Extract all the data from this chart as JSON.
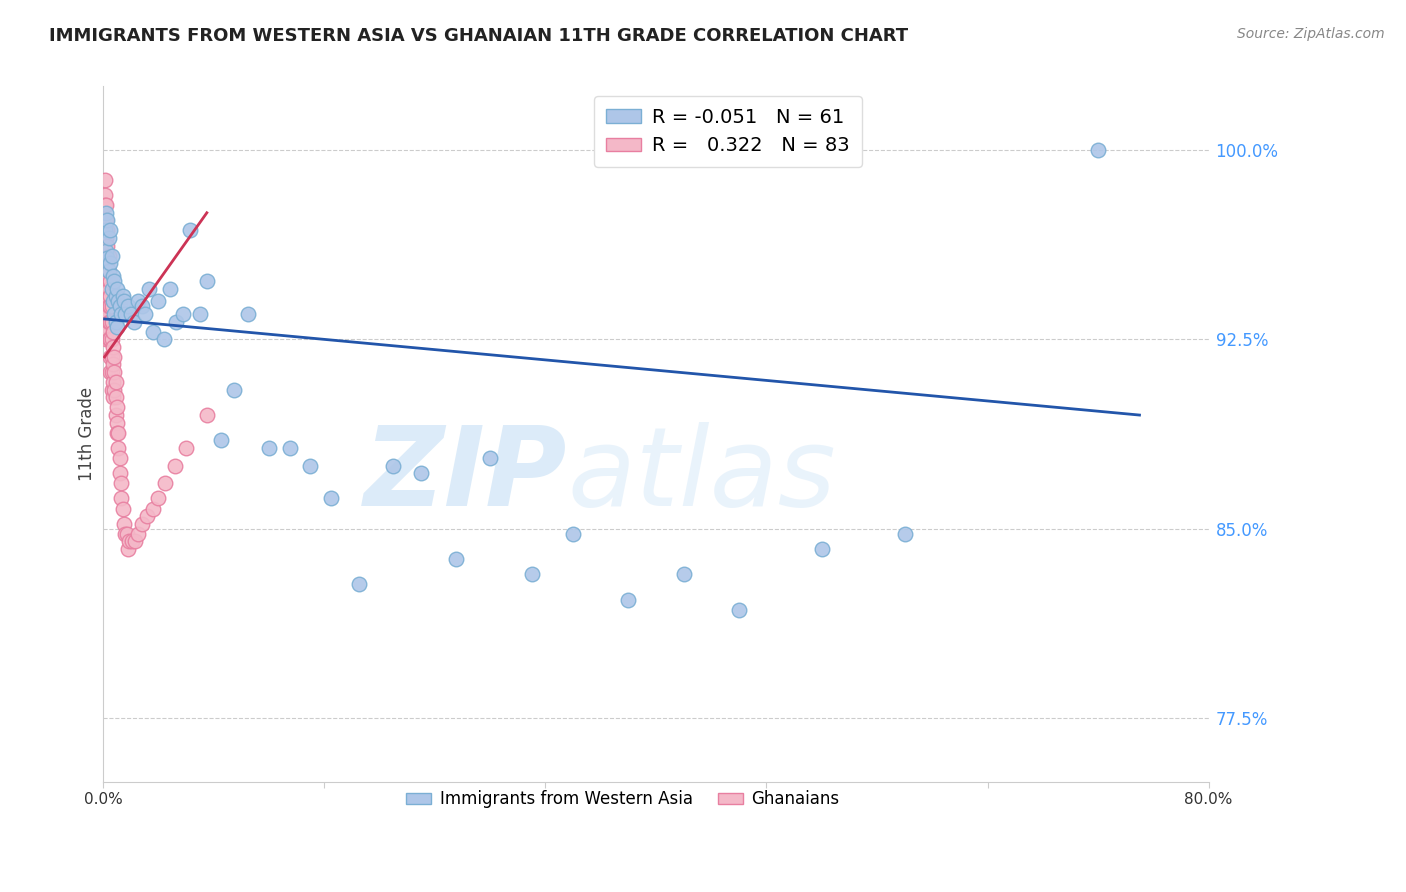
{
  "title": "IMMIGRANTS FROM WESTERN ASIA VS GHANAIAN 11TH GRADE CORRELATION CHART",
  "source": "Source: ZipAtlas.com",
  "ylabel": "11th Grade",
  "legend_label_blue": "Immigrants from Western Asia",
  "legend_label_pink": "Ghanaians",
  "R_blue": -0.051,
  "N_blue": 61,
  "R_pink": 0.322,
  "N_pink": 83,
  "xlim": [
    0.0,
    0.8
  ],
  "ylim": [
    0.75,
    1.025
  ],
  "yticks": [
    0.775,
    0.85,
    0.925,
    1.0
  ],
  "ytick_labels": [
    "77.5%",
    "85.0%",
    "92.5%",
    "100.0%"
  ],
  "xticks": [
    0.0,
    0.16,
    0.32,
    0.48,
    0.64,
    0.8
  ],
  "xtick_labels": [
    "0.0%",
    "",
    "",
    "",
    "",
    "80.0%"
  ],
  "color_blue": "#aec6e8",
  "color_pink": "#f4b8c8",
  "edge_blue": "#7bafd4",
  "edge_pink": "#e87fa0",
  "line_blue": "#2255aa",
  "line_pink": "#cc3355",
  "background": "#ffffff",
  "watermark_zip": "ZIP",
  "watermark_atlas": "atlas",
  "blue_x": [
    0.001,
    0.002,
    0.002,
    0.003,
    0.003,
    0.004,
    0.004,
    0.005,
    0.005,
    0.006,
    0.006,
    0.007,
    0.007,
    0.008,
    0.008,
    0.009,
    0.009,
    0.01,
    0.01,
    0.011,
    0.012,
    0.013,
    0.014,
    0.015,
    0.016,
    0.018,
    0.02,
    0.022,
    0.025,
    0.028,
    0.03,
    0.033,
    0.036,
    0.04,
    0.044,
    0.048,
    0.053,
    0.058,
    0.063,
    0.07,
    0.075,
    0.085,
    0.095,
    0.105,
    0.12,
    0.135,
    0.15,
    0.165,
    0.185,
    0.21,
    0.23,
    0.255,
    0.28,
    0.31,
    0.34,
    0.38,
    0.42,
    0.46,
    0.52,
    0.58,
    0.72
  ],
  "blue_y": [
    0.968,
    0.975,
    0.96,
    0.972,
    0.957,
    0.965,
    0.952,
    0.955,
    0.968,
    0.945,
    0.958,
    0.95,
    0.94,
    0.948,
    0.935,
    0.942,
    0.932,
    0.945,
    0.93,
    0.94,
    0.938,
    0.935,
    0.942,
    0.94,
    0.935,
    0.938,
    0.935,
    0.932,
    0.94,
    0.938,
    0.935,
    0.945,
    0.928,
    0.94,
    0.925,
    0.945,
    0.932,
    0.935,
    0.968,
    0.935,
    0.948,
    0.885,
    0.905,
    0.935,
    0.882,
    0.882,
    0.875,
    0.862,
    0.828,
    0.875,
    0.872,
    0.838,
    0.878,
    0.832,
    0.848,
    0.822,
    0.832,
    0.818,
    0.842,
    0.848,
    1.0
  ],
  "pink_x": [
    0.001,
    0.001,
    0.001,
    0.001,
    0.001,
    0.001,
    0.001,
    0.001,
    0.001,
    0.001,
    0.001,
    0.002,
    0.002,
    0.002,
    0.002,
    0.002,
    0.002,
    0.002,
    0.002,
    0.002,
    0.003,
    0.003,
    0.003,
    0.003,
    0.003,
    0.003,
    0.003,
    0.004,
    0.004,
    0.004,
    0.004,
    0.004,
    0.004,
    0.005,
    0.005,
    0.005,
    0.005,
    0.005,
    0.005,
    0.005,
    0.006,
    0.006,
    0.006,
    0.006,
    0.006,
    0.006,
    0.007,
    0.007,
    0.007,
    0.007,
    0.007,
    0.008,
    0.008,
    0.008,
    0.009,
    0.009,
    0.009,
    0.01,
    0.01,
    0.01,
    0.011,
    0.011,
    0.012,
    0.012,
    0.013,
    0.013,
    0.014,
    0.015,
    0.016,
    0.017,
    0.018,
    0.019,
    0.021,
    0.023,
    0.025,
    0.028,
    0.032,
    0.036,
    0.04,
    0.045,
    0.052,
    0.06,
    0.075
  ],
  "pink_y": [
    0.988,
    0.982,
    0.978,
    0.972,
    0.968,
    0.962,
    0.958,
    0.952,
    0.948,
    0.942,
    0.935,
    0.978,
    0.972,
    0.965,
    0.958,
    0.952,
    0.945,
    0.938,
    0.932,
    0.925,
    0.968,
    0.962,
    0.955,
    0.948,
    0.942,
    0.935,
    0.928,
    0.958,
    0.952,
    0.945,
    0.938,
    0.932,
    0.925,
    0.948,
    0.942,
    0.938,
    0.932,
    0.925,
    0.918,
    0.912,
    0.938,
    0.932,
    0.925,
    0.918,
    0.912,
    0.905,
    0.928,
    0.922,
    0.915,
    0.908,
    0.902,
    0.918,
    0.912,
    0.905,
    0.908,
    0.902,
    0.895,
    0.898,
    0.892,
    0.888,
    0.888,
    0.882,
    0.878,
    0.872,
    0.868,
    0.862,
    0.858,
    0.852,
    0.848,
    0.848,
    0.842,
    0.845,
    0.845,
    0.845,
    0.848,
    0.852,
    0.855,
    0.858,
    0.862,
    0.868,
    0.875,
    0.882,
    0.895
  ],
  "blue_trend_x": [
    0.001,
    0.75
  ],
  "blue_trend_y": [
    0.933,
    0.895
  ],
  "pink_trend_x": [
    0.001,
    0.075
  ],
  "pink_trend_y": [
    0.918,
    0.975
  ]
}
